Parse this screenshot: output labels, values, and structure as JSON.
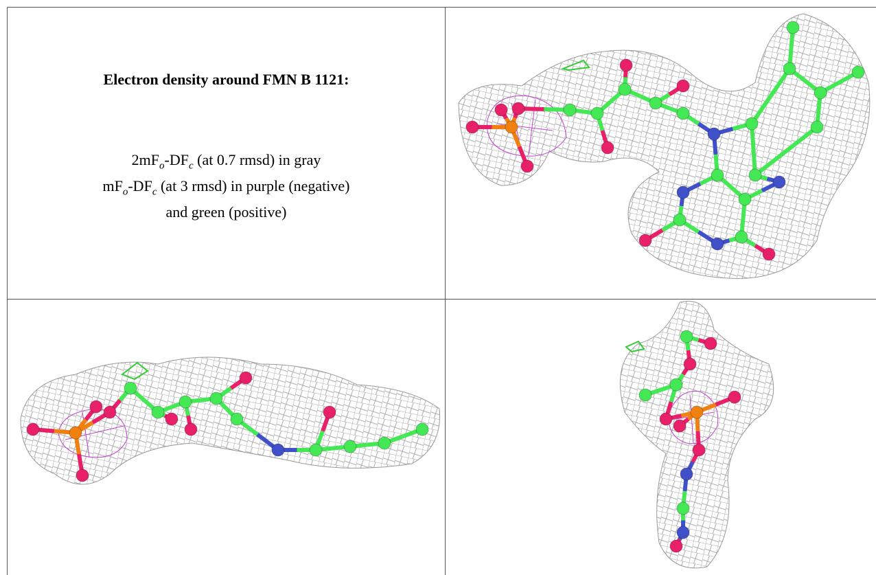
{
  "title": "Electron density around FMN B 1121:",
  "legend": [
    [
      "2mF",
      "o",
      "-DF",
      "c",
      " (at 0.7 rmsd) in gray"
    ],
    [
      "mF",
      "o",
      "-DF",
      "c",
      " (at 3 rmsd) in purple (negative)"
    ],
    [
      "and green (positive)"
    ]
  ]
}
